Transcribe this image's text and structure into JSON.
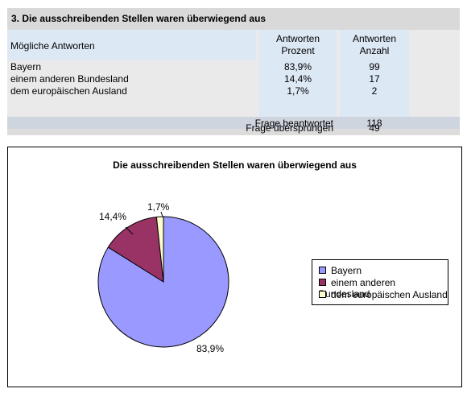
{
  "question": {
    "title": "3. Die ausschreibenden Stellen waren überwiegend aus"
  },
  "table": {
    "col_answers": "Mögliche Antworten",
    "col_percent_1": "Antworten",
    "col_percent_2": "Prozent",
    "col_count_1": "Antworten",
    "col_count_2": "Anzahl",
    "rows": [
      {
        "label": "Bayern",
        "percent": "83,9%",
        "count": "99"
      },
      {
        "label": "einem anderen Bundesland",
        "percent": "14,4%",
        "count": "17"
      },
      {
        "label": "dem europäischen Ausland",
        "percent": "1,7%",
        "count": "2"
      }
    ],
    "answered_label": "Frage beantwortet",
    "answered_value": "118",
    "skipped_label": "Frage übersprungen",
    "skipped_value": "49"
  },
  "chart_data": {
    "type": "pie",
    "title": "Die ausschreibenden Stellen waren überwiegend aus",
    "categories": [
      "Bayern",
      "einem anderen Bundesland",
      "dem europäischen Ausland"
    ],
    "values": [
      83.9,
      14.4,
      1.7
    ],
    "data_labels": [
      "83,9%",
      "14,4%",
      "1,7%"
    ],
    "colors": [
      "#9999ff",
      "#993366",
      "#ffffcc"
    ],
    "legend_position": "right"
  }
}
